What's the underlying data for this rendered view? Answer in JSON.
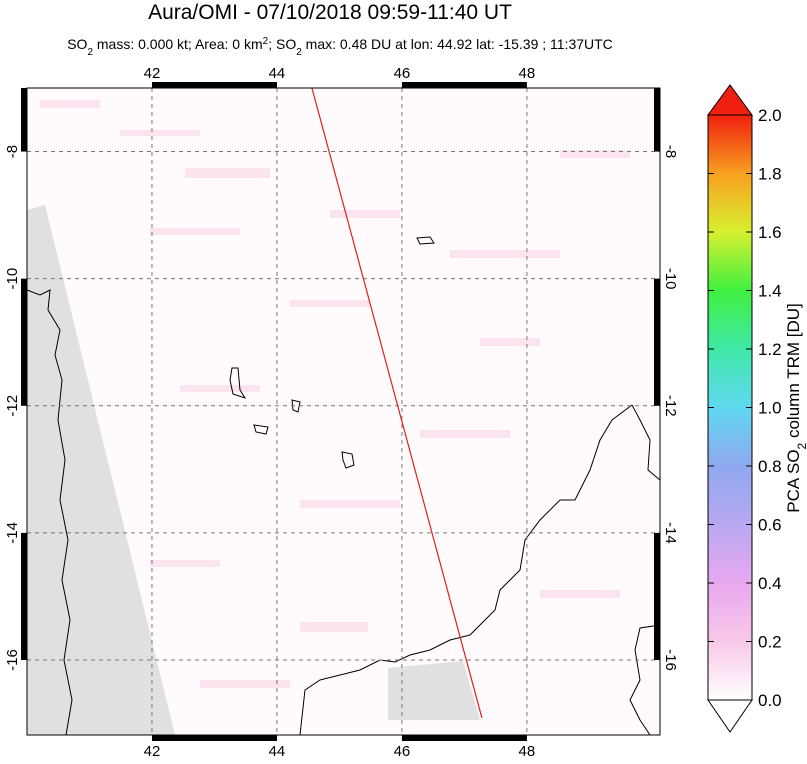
{
  "chart_data": {
    "type": "map",
    "title": "Aura/OMI - 07/10/2018 09:59-11:40 UT",
    "subtitle_parts": [
      "SO",
      "2",
      " mass: 0.000 kt; Area: 0 km",
      "2",
      "; SO",
      "2",
      " max: 0.48 DU at lon: 44.92 lat: -15.39 ; 11:37UTC"
    ],
    "xlim": [
      40,
      50.13
    ],
    "ylim": [
      -17.18,
      -7
    ],
    "xticks": [
      42,
      44,
      46,
      48
    ],
    "yticks": [
      -8,
      -10,
      -12,
      -14,
      -16
    ],
    "grid": true,
    "swath": {
      "color": "#e02020",
      "x": [
        44.56,
        47.28
      ],
      "y": [
        -7,
        -16.91
      ]
    },
    "colorbar": {
      "label_parts": [
        "PCA SO",
        "2",
        " column TRM [DU]"
      ],
      "lim": [
        0,
        2
      ],
      "ticks": [
        {
          "value": 0,
          "label": "0.0"
        },
        0.2,
        0.4,
        0.6,
        0.8,
        {
          "value": 1,
          "label": "1.0"
        },
        1.2,
        1.4,
        1.6,
        1.8,
        {
          "value": 2,
          "label": "2.0"
        }
      ],
      "colors": [
        "#ffffff",
        "#f8c8e8",
        "#e8a8f0",
        "#b8a8f0",
        "#90a8f0",
        "#60d8f0",
        "#40e8a8",
        "#40f040",
        "#d8f030",
        "#f8a020",
        "#f02010"
      ]
    }
  }
}
